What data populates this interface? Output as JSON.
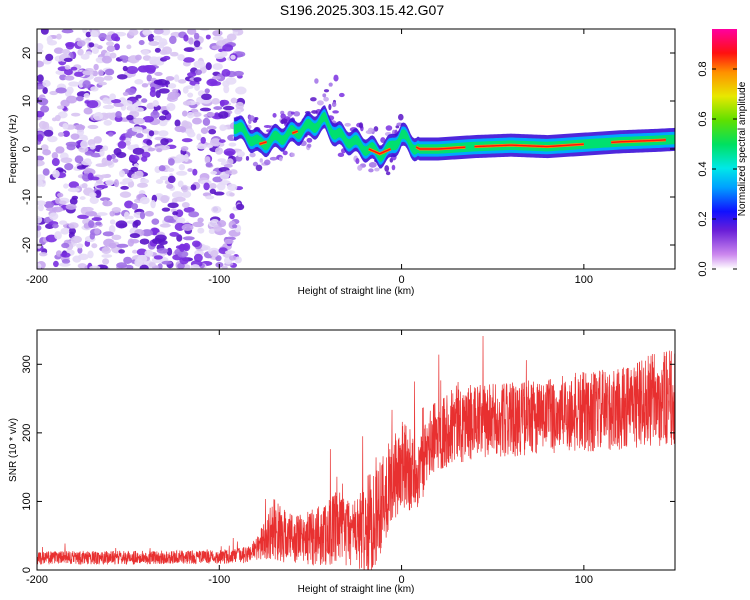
{
  "title": "S196.2025.303.15.42.G07",
  "colors": {
    "snr_line": "#e83030",
    "scatter_purple": "#7a2fe0",
    "scatter_light": "#d8c4f2"
  },
  "chart_data": [
    {
      "type": "heatmap",
      "title": "S196.2025.303.15.42.G07",
      "xlabel": "Height of straight line (km)",
      "ylabel": "Frequency (Hz)",
      "xlim": [
        -200,
        150
      ],
      "ylim": [
        -25,
        25
      ],
      "xticks": [
        "-200",
        "-100",
        "0",
        "100"
      ],
      "yticks": [
        "-20",
        "-10",
        "0",
        "10",
        "20"
      ],
      "noise_region_x": [
        -200,
        -88
      ],
      "ridge": {
        "x": [
          -92,
          -85,
          -78,
          -70,
          -62,
          -55,
          -48,
          -42,
          -36,
          -30,
          -24,
          -18,
          -12,
          -6,
          0,
          5,
          10,
          20,
          40,
          60,
          80,
          100,
          120,
          140,
          150
        ],
        "freq": [
          5,
          3,
          1,
          2,
          3,
          4,
          5,
          6,
          3,
          2,
          1,
          0,
          -1,
          0,
          3,
          1,
          0,
          0,
          0.5,
          0.8,
          0.5,
          1,
          1.5,
          1.8,
          2
        ]
      },
      "colorbar": {
        "label": "Normalized spectral amplitude",
        "ticks": [
          "0.0",
          "0.2",
          "0.4",
          "0.6",
          "0.8"
        ],
        "range": [
          0,
          0.96
        ]
      }
    },
    {
      "type": "line",
      "xlabel": "Height of straight line (km)",
      "ylabel": "SNR (10 * v/v)",
      "xlim": [
        -200,
        150
      ],
      "ylim": [
        0,
        350
      ],
      "xticks": [
        "-200",
        "-100",
        "0",
        "100"
      ],
      "yticks": [
        "0",
        "100",
        "200",
        "300"
      ],
      "series": [
        {
          "name": "SNR",
          "x": [
            -200,
            -150,
            -100,
            -85,
            -78,
            -70,
            -65,
            -55,
            -45,
            -35,
            -25,
            -18,
            -12,
            -5,
            0,
            10,
            15,
            20,
            30,
            40,
            60,
            80,
            100,
            120,
            140,
            150
          ],
          "mean": [
            18,
            18,
            19,
            22,
            35,
            60,
            50,
            45,
            50,
            60,
            55,
            60,
            100,
            130,
            150,
            140,
            180,
            200,
            215,
            215,
            220,
            225,
            230,
            235,
            250,
            250
          ],
          "amp": [
            10,
            10,
            10,
            12,
            20,
            45,
            40,
            35,
            45,
            55,
            50,
            80,
            80,
            60,
            70,
            50,
            50,
            55,
            60,
            55,
            55,
            55,
            60,
            60,
            70,
            70
          ]
        }
      ]
    }
  ]
}
